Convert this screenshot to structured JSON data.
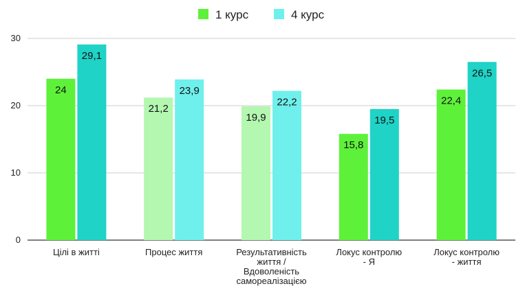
{
  "chart_data": {
    "type": "bar",
    "categories": [
      [
        "Цілі в житті"
      ],
      [
        "Процес життя"
      ],
      [
        "Результативність",
        "життя /",
        "Вдоволеність",
        "самореалізацією"
      ],
      [
        "Локус контролю",
        "- Я"
      ],
      [
        "Локус контролю",
        "- життя"
      ]
    ],
    "series": [
      {
        "name": "1 курс",
        "values": [
          24,
          21.2,
          19.9,
          15.8,
          22.4
        ],
        "colors": [
          "#5ef13a",
          "#b3f7b0",
          "#b3f7b0",
          "#5ef13a",
          "#5ef13a"
        ]
      },
      {
        "name": "4 курс",
        "values": [
          29.1,
          23.9,
          22.2,
          19.5,
          26.5
        ],
        "colors": [
          "#1fd3c6",
          "#6ff0ec",
          "#6ff0ec",
          "#1fd3c6",
          "#1fd3c6"
        ]
      }
    ],
    "data_labels": [
      [
        "24",
        "21,2",
        "19,9",
        "15,8",
        "22,4"
      ],
      [
        "29,1",
        "23,9",
        "22,2",
        "19,5",
        "26,5"
      ]
    ],
    "yticks": [
      0,
      10,
      20,
      30
    ],
    "ylim": [
      0,
      30
    ],
    "legend_colors": [
      "#5ef13a",
      "#6ff0ec"
    ],
    "legend_position": "top-center",
    "grid": true
  }
}
